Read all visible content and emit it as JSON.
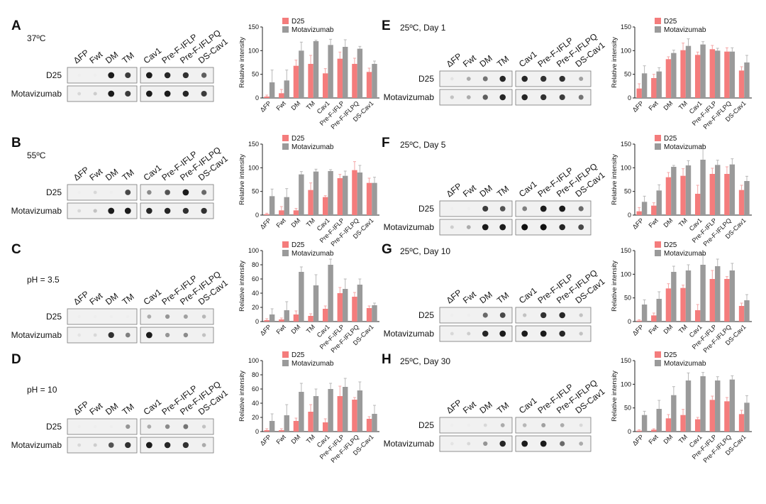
{
  "legend": {
    "d25_label": "D25",
    "mota_label": "Motavizumab"
  },
  "colors": {
    "d25": "#f47c7c",
    "mota": "#9a9a9a",
    "err": "#f4a6a6",
    "err2": "#b8b8b8"
  },
  "blot": {
    "row1": "D25",
    "row2": "Motavizumab"
  },
  "chart_data": [
    {
      "panel": "A",
      "condition": "37ºC",
      "type": "bar",
      "ylabel": "Relative intensity",
      "ylim": [
        0,
        150
      ],
      "yticks": [
        0,
        50,
        100,
        150
      ],
      "categories": [
        "ΔFP",
        "Fwt",
        "DM",
        "TM",
        "Cav1",
        "Pre-F-IFLP",
        "Pre-F-IFLPQ",
        "DS-Cav1"
      ],
      "series": [
        {
          "name": "D25",
          "values": [
            3,
            10,
            68,
            72,
            52,
            83,
            72,
            55
          ],
          "errors": [
            3,
            8,
            12,
            18,
            10,
            14,
            12,
            8
          ]
        },
        {
          "name": "Motavizumab",
          "values": [
            33,
            37,
            100,
            120,
            112,
            108,
            104,
            72
          ],
          "errors": [
            26,
            22,
            18,
            2,
            12,
            15,
            5,
            6
          ]
        }
      ],
      "blot_d25": [
        0,
        0,
        0.95,
        0.8,
        0.95,
        0.9,
        0.85,
        0.65
      ],
      "blot_mota": [
        0.1,
        0.15,
        0.95,
        0.8,
        0.95,
        0.95,
        0.9,
        0.8
      ]
    },
    {
      "panel": "B",
      "condition": "55ºC",
      "type": "bar",
      "ylabel": "Relative intensity",
      "ylim": [
        0,
        150
      ],
      "yticks": [
        0,
        50,
        100,
        150
      ],
      "categories": [
        "ΔFP",
        "Fwt",
        "DM",
        "TM",
        "Cav1",
        "Pre-F-IFLP",
        "Pre-F-IFLPQ",
        "DS-Cav1"
      ],
      "series": [
        {
          "name": "D25",
          "values": [
            2,
            10,
            10,
            53,
            38,
            78,
            95,
            68
          ],
          "errors": [
            2,
            8,
            4,
            15,
            3,
            8,
            18,
            10
          ]
        },
        {
          "name": "Motavizumab",
          "values": [
            40,
            38,
            86,
            92,
            93,
            83,
            90,
            68
          ],
          "errors": [
            15,
            18,
            6,
            5,
            3,
            10,
            15,
            12
          ]
        }
      ],
      "blot_d25": [
        0,
        0.1,
        0,
        0.75,
        0.45,
        0.7,
        0.95,
        0.6
      ],
      "blot_mota": [
        0.1,
        0.2,
        0.95,
        0.95,
        0.9,
        0.9,
        0.85,
        0.85
      ]
    },
    {
      "panel": "C",
      "condition": "pH = 3.5",
      "type": "bar",
      "ylabel": "Relative intensity",
      "ylim": [
        0,
        100
      ],
      "yticks": [
        0,
        20,
        40,
        60,
        80,
        100
      ],
      "categories": [
        "ΔFP",
        "Fwt",
        "DM",
        "TM",
        "Cav1",
        "Pre-F-IFLP",
        "Pre-F-IFLPQ",
        "DS-Cav1"
      ],
      "series": [
        {
          "name": "D25",
          "values": [
            2,
            3,
            10,
            8,
            18,
            40,
            35,
            19
          ],
          "errors": [
            2,
            2,
            5,
            3,
            4,
            8,
            6,
            3
          ]
        },
        {
          "name": "Motavizumab",
          "values": [
            10,
            16,
            70,
            51,
            80,
            46,
            52,
            23
          ],
          "errors": [
            8,
            12,
            7,
            15,
            8,
            14,
            8,
            3
          ]
        }
      ],
      "blot_d25": [
        0,
        0,
        0,
        0,
        0.3,
        0.4,
        0.35,
        0.25
      ],
      "blot_mota": [
        0.05,
        0.1,
        0.85,
        0.5,
        0.95,
        0.4,
        0.45,
        0.2
      ]
    },
    {
      "panel": "D",
      "condition": "pH = 10",
      "type": "bar",
      "ylabel": "Relative intensity",
      "ylim": [
        0,
        100
      ],
      "yticks": [
        0,
        20,
        40,
        60,
        80,
        100
      ],
      "categories": [
        "ΔFP",
        "Fwt",
        "DM",
        "TM",
        "Cav1",
        "Pre-F-IFLP",
        "Pre-F-IFLPQ",
        "DS-Cav1"
      ],
      "series": [
        {
          "name": "D25",
          "values": [
            2,
            2,
            15,
            28,
            13,
            50,
            45,
            18
          ],
          "errors": [
            2,
            2,
            4,
            10,
            5,
            14,
            3,
            3
          ]
        },
        {
          "name": "Motavizumab",
          "values": [
            15,
            23,
            56,
            50,
            60,
            63,
            58,
            25
          ],
          "errors": [
            10,
            15,
            12,
            10,
            8,
            12,
            12,
            12
          ]
        }
      ],
      "blot_d25": [
        0,
        0,
        0,
        0.4,
        0.3,
        0.45,
        0.55,
        0.2
      ],
      "blot_mota": [
        0.1,
        0.15,
        0.7,
        0.85,
        0.95,
        0.9,
        0.85,
        0.3
      ]
    },
    {
      "panel": "E",
      "condition": "25ºC, Day 1",
      "type": "bar",
      "ylabel": "Relative intensity",
      "ylim": [
        0,
        150
      ],
      "yticks": [
        0,
        50,
        100,
        150
      ],
      "categories": [
        "ΔFP",
        "Fwt",
        "DM",
        "TM",
        "Cav1",
        "Pre-F-IFLP",
        "Pre-F-IFLPQ",
        "DS-Cav1"
      ],
      "series": [
        {
          "name": "D25",
          "values": [
            20,
            42,
            82,
            101,
            91,
            103,
            98,
            58
          ],
          "errors": [
            10,
            8,
            5,
            15,
            6,
            8,
            8,
            8
          ]
        },
        {
          "name": "Motavizumab",
          "values": [
            52,
            56,
            95,
            110,
            113,
            100,
            98,
            75
          ],
          "errors": [
            16,
            8,
            6,
            15,
            6,
            5,
            8,
            15
          ]
        }
      ],
      "blot_d25": [
        0.05,
        0.3,
        0.55,
        0.9,
        0.9,
        0.85,
        0.85,
        0.35
      ],
      "blot_mota": [
        0.2,
        0.3,
        0.65,
        0.9,
        0.9,
        0.85,
        0.8,
        0.55
      ]
    },
    {
      "panel": "F",
      "condition": "25ºC, Day 5",
      "type": "bar",
      "ylabel": "Relative intensity",
      "ylim": [
        0,
        150
      ],
      "yticks": [
        0,
        50,
        100,
        150
      ],
      "categories": [
        "ΔFP",
        "Fwt",
        "DM",
        "TM",
        "Cav1",
        "Pre-F-IFLP",
        "Pre-F-IFLPQ",
        "DS-Cav1"
      ],
      "series": [
        {
          "name": "D25",
          "values": [
            8,
            20,
            80,
            83,
            45,
            87,
            87,
            53
          ],
          "errors": [
            8,
            6,
            10,
            15,
            18,
            12,
            15,
            10
          ]
        },
        {
          "name": "Motavizumab",
          "values": [
            28,
            52,
            102,
            105,
            117,
            106,
            107,
            72
          ],
          "errors": [
            12,
            12,
            3,
            10,
            30,
            10,
            12,
            10
          ]
        }
      ],
      "blot_d25": [
        0,
        0,
        0.8,
        0.7,
        0.5,
        0.95,
        0.95,
        0.6
      ],
      "blot_mota": [
        0.15,
        0.3,
        0.95,
        0.95,
        1,
        1,
        0.9,
        0.75
      ]
    },
    {
      "panel": "G",
      "condition": "25ºC, Day 10",
      "type": "bar",
      "ylabel": "Relative intensity",
      "ylim": [
        0,
        150
      ],
      "yticks": [
        0,
        50,
        100,
        150
      ],
      "categories": [
        "ΔFP",
        "Fwt",
        "DM",
        "TM",
        "Cav1",
        "Pre-F-IFLP",
        "Pre-F-IFLPQ",
        "DS-Cav1"
      ],
      "series": [
        {
          "name": "D25",
          "values": [
            2,
            13,
            70,
            71,
            24,
            90,
            90,
            33
          ],
          "errors": [
            2,
            5,
            10,
            6,
            12,
            18,
            5,
            6
          ]
        },
        {
          "name": "Motavizumab",
          "values": [
            36,
            48,
            105,
            108,
            120,
            117,
            108,
            45
          ],
          "errors": [
            10,
            15,
            12,
            12,
            22,
            15,
            15,
            12
          ]
        }
      ],
      "blot_d25": [
        0,
        0,
        0.6,
        0.75,
        0.2,
        0.85,
        0.9,
        0.2
      ],
      "blot_mota": [
        0.1,
        0.15,
        0.9,
        0.95,
        0.95,
        0.95,
        0.9,
        0.2
      ]
    },
    {
      "panel": "H",
      "condition": "25ºC, Day 30",
      "type": "bar",
      "ylabel": "Relative intensity",
      "ylim": [
        0,
        150
      ],
      "yticks": [
        0,
        50,
        100,
        150
      ],
      "categories": [
        "ΔFP",
        "Fwt",
        "DM",
        "TM",
        "Cav1",
        "Pre-F-IFLP",
        "Pre-F-IFLPQ",
        "DS-Cav1"
      ],
      "series": [
        {
          "name": "D25",
          "values": [
            2,
            4,
            28,
            35,
            26,
            67,
            64,
            37
          ],
          "errors": [
            2,
            2,
            8,
            12,
            4,
            8,
            8,
            8
          ]
        },
        {
          "name": "Motavizumab",
          "values": [
            35,
            48,
            77,
            108,
            117,
            108,
            110,
            61
          ],
          "errors": [
            8,
            18,
            18,
            16,
            8,
            8,
            8,
            15
          ]
        }
      ],
      "blot_d25": [
        0,
        0,
        0.1,
        0.3,
        0.25,
        0.35,
        0.3,
        0.1
      ],
      "blot_mota": [
        0.05,
        0.1,
        0.4,
        0.9,
        0.95,
        0.95,
        0.6,
        0.3
      ]
    }
  ]
}
